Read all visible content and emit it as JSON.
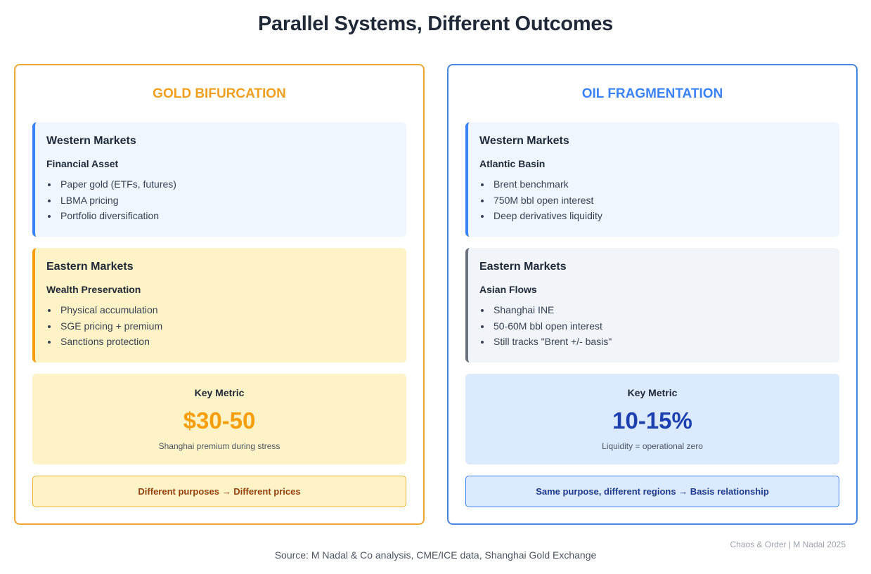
{
  "title": "Parallel Systems, Different Outcomes",
  "panels": [
    {
      "title": "GOLD BIFURCATION",
      "western": {
        "title": "Western Markets",
        "subtitle": "Financial Asset",
        "items": [
          "Paper gold (ETFs, futures)",
          "LBMA pricing",
          "Portfolio diversification"
        ]
      },
      "eastern": {
        "title": "Eastern Markets",
        "subtitle": "Wealth Preservation",
        "items": [
          "Physical accumulation",
          "SGE pricing + premium",
          "Sanctions protection"
        ]
      },
      "metric": {
        "label": "Key Metric",
        "value": "$30-50",
        "note": "Shanghai premium during stress"
      },
      "conclusion": "Different purposes → Different prices"
    },
    {
      "title": "OIL FRAGMENTATION",
      "western": {
        "title": "Western Markets",
        "subtitle": "Atlantic Basin",
        "items": [
          "Brent benchmark",
          "750M bbl open interest",
          "Deep derivatives liquidity"
        ]
      },
      "eastern": {
        "title": "Eastern Markets",
        "subtitle": "Asian Flows",
        "items": [
          "Shanghai INE",
          "50-60M bbl open interest",
          "Still tracks \"Brent +/- basis\""
        ]
      },
      "metric": {
        "label": "Key Metric",
        "value": "10-15%",
        "note": "Liquidity = operational zero"
      },
      "conclusion": "Same purpose, different regions → Basis relationship"
    }
  ],
  "credit": "Chaos & Order | M Nadal 2025",
  "source": "Source: M Nadal & Co analysis, CME/ICE data, Shanghai Gold Exchange",
  "colors": {
    "gold_accent": "#f0a732",
    "oil_accent": "#4a86df"
  }
}
